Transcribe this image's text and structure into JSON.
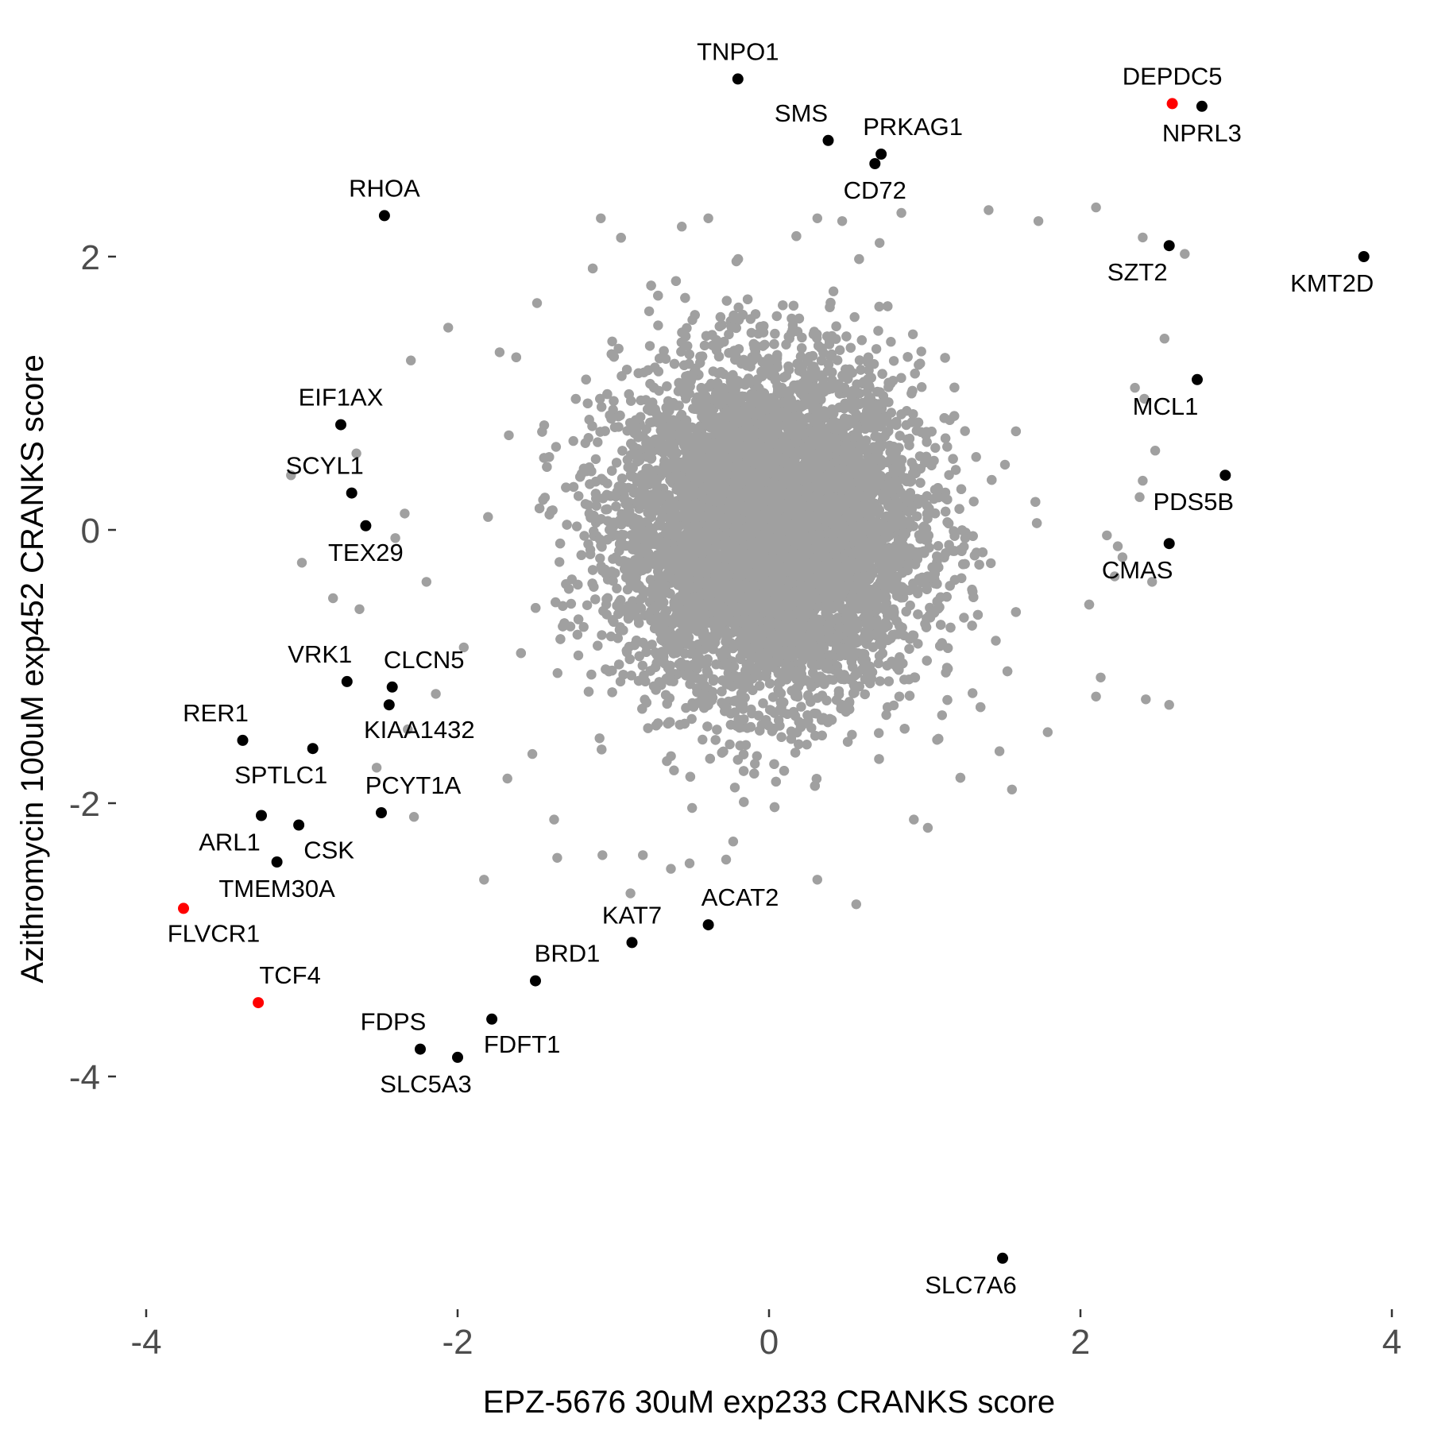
{
  "chart_data": {
    "type": "scatter",
    "title": "",
    "xlabel": "EPZ-5676 30uM exp233 CRANKS score",
    "ylabel": "Azithromycin 100uM exp452 CRANKS score",
    "xlim": [
      -4.0,
      4.0
    ],
    "ylim": [
      -5.7,
      3.7
    ],
    "x_ticks": [
      -4,
      -2,
      0,
      2,
      4
    ],
    "x_tick_labels": [
      "-4",
      "-2",
      "0",
      "2",
      "4"
    ],
    "y_ticks": [
      2,
      0,
      -2,
      -4
    ],
    "y_tick_labels": [
      "2",
      "0",
      "-2",
      "-4"
    ],
    "grid": false,
    "legend": "none",
    "colors": {
      "background_points": "#a0a0a0",
      "highlight": "#000000",
      "special": "#ff0000"
    },
    "background_cloud": {
      "description_hidden": true,
      "n_points": 11000,
      "center": [
        0.0,
        0.0
      ],
      "sd": [
        0.48,
        0.6
      ],
      "outliers": [
        [
          -1.08,
          2.28
        ],
        [
          -0.56,
          2.22
        ],
        [
          -0.39,
          2.28
        ],
        [
          0.31,
          2.28
        ],
        [
          0.47,
          2.26
        ],
        [
          0.71,
          2.1
        ],
        [
          0.85,
          2.32
        ],
        [
          1.41,
          2.34
        ],
        [
          1.73,
          2.26
        ],
        [
          2.1,
          2.36
        ],
        [
          2.4,
          2.14
        ],
        [
          2.67,
          2.02
        ],
        [
          -2.06,
          1.48
        ],
        [
          -2.3,
          1.24
        ],
        [
          -1.73,
          1.3
        ],
        [
          -1.49,
          1.66
        ],
        [
          -0.77,
          1.6
        ],
        [
          2.54,
          1.4
        ],
        [
          2.41,
          0.96
        ],
        [
          2.35,
          1.04
        ],
        [
          2.48,
          0.58
        ],
        [
          2.4,
          0.36
        ],
        [
          2.38,
          0.24
        ],
        [
          -3.07,
          0.4
        ],
        [
          -2.65,
          0.56
        ],
        [
          -2.34,
          0.12
        ],
        [
          -2.4,
          -0.06
        ],
        [
          -2.2,
          -0.38
        ],
        [
          -3.0,
          -0.24
        ],
        [
          -2.8,
          -0.5
        ],
        [
          -2.63,
          -0.58
        ],
        [
          2.17,
          -0.04
        ],
        [
          2.24,
          -0.12
        ],
        [
          2.27,
          -0.2
        ],
        [
          2.22,
          -0.34
        ],
        [
          2.46,
          -0.38
        ],
        [
          -1.96,
          -0.86
        ],
        [
          -2.14,
          -1.2
        ],
        [
          -2.32,
          -1.46
        ],
        [
          -1.68,
          -1.82
        ],
        [
          -1.52,
          -1.64
        ],
        [
          2.13,
          -1.08
        ],
        [
          2.1,
          -1.22
        ],
        [
          2.42,
          -1.24
        ],
        [
          2.57,
          -1.28
        ],
        [
          1.79,
          -1.48
        ],
        [
          1.56,
          -1.9
        ],
        [
          -2.28,
          -2.1
        ],
        [
          -2.52,
          -1.74
        ],
        [
          -1.38,
          -2.12
        ],
        [
          -1.36,
          -2.4
        ],
        [
          -1.07,
          -2.38
        ],
        [
          -0.81,
          -2.38
        ],
        [
          -0.51,
          -2.44
        ],
        [
          -0.23,
          -2.28
        ],
        [
          0.31,
          -2.56
        ],
        [
          0.56,
          -2.74
        ],
        [
          -1.83,
          -2.56
        ],
        [
          -0.89,
          -2.66
        ],
        [
          -0.63,
          -2.48
        ],
        [
          0.93,
          -2.12
        ],
        [
          1.02,
          -2.18
        ],
        [
          1.48,
          -1.62
        ]
      ]
    },
    "labeled_genes": [
      {
        "name": "TNPO1",
        "x": -0.2,
        "y": 3.3,
        "color": "#000000",
        "label_pos": "above"
      },
      {
        "name": "SMS",
        "x": 0.38,
        "y": 2.85,
        "color": "#000000",
        "label_pos": "above-left"
      },
      {
        "name": "PRKAG1",
        "x": 0.72,
        "y": 2.75,
        "color": "#000000",
        "label_pos": "above-right"
      },
      {
        "name": "CD72",
        "x": 0.68,
        "y": 2.68,
        "color": "#000000",
        "label_pos": "below"
      },
      {
        "name": "DEPDC5",
        "x": 2.59,
        "y": 3.12,
        "color": "#ff0000",
        "label_pos": "above"
      },
      {
        "name": "NPRL3",
        "x": 2.78,
        "y": 3.1,
        "color": "#000000",
        "label_pos": "below"
      },
      {
        "name": "RHOA",
        "x": -2.47,
        "y": 2.3,
        "color": "#000000",
        "label_pos": "above"
      },
      {
        "name": "SZT2",
        "x": 2.57,
        "y": 2.08,
        "color": "#000000",
        "label_pos": "below-left"
      },
      {
        "name": "KMT2D",
        "x": 3.82,
        "y": 2.0,
        "color": "#000000",
        "label_pos": "below-left"
      },
      {
        "name": "MCL1",
        "x": 2.75,
        "y": 1.1,
        "color": "#000000",
        "label_pos": "below-left"
      },
      {
        "name": "EIF1AX",
        "x": -2.75,
        "y": 0.77,
        "color": "#000000",
        "label_pos": "above"
      },
      {
        "name": "PDS5B",
        "x": 2.93,
        "y": 0.4,
        "color": "#000000",
        "label_pos": "below-left"
      },
      {
        "name": "SCYL1",
        "x": -2.68,
        "y": 0.27,
        "color": "#000000",
        "label_pos": "above-left"
      },
      {
        "name": "TEX29",
        "x": -2.59,
        "y": 0.03,
        "color": "#000000",
        "label_pos": "below"
      },
      {
        "name": "CMAS",
        "x": 2.57,
        "y": -0.1,
        "color": "#000000",
        "label_pos": "below-left"
      },
      {
        "name": "VRK1",
        "x": -2.71,
        "y": -1.11,
        "color": "#000000",
        "label_pos": "above-left"
      },
      {
        "name": "CLCN5",
        "x": -2.42,
        "y": -1.15,
        "color": "#000000",
        "label_pos": "above-right"
      },
      {
        "name": "KIAA1432",
        "x": -2.44,
        "y": -1.28,
        "color": "#000000",
        "label_pos": "below-right"
      },
      {
        "name": "RER1",
        "x": -3.38,
        "y": -1.54,
        "color": "#000000",
        "label_pos": "above-left"
      },
      {
        "name": "SPTLC1",
        "x": -2.93,
        "y": -1.6,
        "color": "#000000",
        "label_pos": "below-left"
      },
      {
        "name": "PCYT1A",
        "x": -2.49,
        "y": -2.07,
        "color": "#000000",
        "label_pos": "above-right"
      },
      {
        "name": "ARL1",
        "x": -3.26,
        "y": -2.09,
        "color": "#000000",
        "label_pos": "below-left"
      },
      {
        "name": "CSK",
        "x": -3.02,
        "y": -2.16,
        "color": "#000000",
        "label_pos": "below-right"
      },
      {
        "name": "TMEM30A",
        "x": -3.16,
        "y": -2.43,
        "color": "#000000",
        "label_pos": "below"
      },
      {
        "name": "FLVCR1",
        "x": -3.76,
        "y": -2.77,
        "color": "#ff0000",
        "label_pos": "below-right"
      },
      {
        "name": "ACAT2",
        "x": -0.39,
        "y": -2.89,
        "color": "#000000",
        "label_pos": "above-right"
      },
      {
        "name": "KAT7",
        "x": -0.88,
        "y": -3.02,
        "color": "#000000",
        "label_pos": "above"
      },
      {
        "name": "BRD1",
        "x": -1.5,
        "y": -3.3,
        "color": "#000000",
        "label_pos": "above-right"
      },
      {
        "name": "TCF4",
        "x": -3.28,
        "y": -3.46,
        "color": "#ff0000",
        "label_pos": "above-right"
      },
      {
        "name": "FDFT1",
        "x": -1.78,
        "y": -3.58,
        "color": "#000000",
        "label_pos": "below-right"
      },
      {
        "name": "FDPS",
        "x": -2.24,
        "y": -3.8,
        "color": "#000000",
        "label_pos": "above-left"
      },
      {
        "name": "SLC5A3",
        "x": -2.0,
        "y": -3.86,
        "color": "#000000",
        "label_pos": "below-left"
      },
      {
        "name": "SLC7A6",
        "x": 1.5,
        "y": -5.33,
        "color": "#000000",
        "label_pos": "below-left"
      }
    ]
  }
}
